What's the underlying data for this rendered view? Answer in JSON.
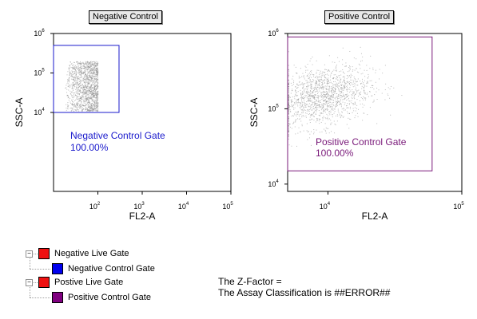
{
  "colors": {
    "negative_gate": "#1a1acc",
    "positive_gate": "#7a1a7a",
    "live_gate_swatch": "#ee1111",
    "negative_control_swatch": "#0000ee",
    "positive_control_swatch": "#800080",
    "points": "#888888"
  },
  "chart_data": [
    {
      "type": "scatter",
      "title": "Negative Control",
      "xlabel": "FL2-A",
      "ylabel": "SSC-A",
      "x_scale": "log",
      "y_scale": "log",
      "xlim": [
        10,
        100000
      ],
      "ylim": [
        100,
        1000000
      ],
      "x_ticks": [
        {
          "mantissa": "10",
          "exp": "2"
        },
        {
          "mantissa": "10",
          "exp": "3"
        },
        {
          "mantissa": "10",
          "exp": "4"
        },
        {
          "mantissa": "10",
          "exp": "5"
        }
      ],
      "y_ticks": [
        {
          "mantissa": "10",
          "exp": "4"
        },
        {
          "mantissa": "10",
          "exp": "5"
        },
        {
          "mantissa": "10",
          "exp": "6"
        }
      ],
      "point_cloud": {
        "x_range": [
          18,
          100
        ],
        "y_range": [
          11000,
          200000
        ],
        "count": 1500
      },
      "gate": {
        "name": "Negative Control Gate",
        "percent": "100.00%",
        "x_range": [
          10,
          300
        ],
        "y_range": [
          10000,
          500000
        ]
      }
    },
    {
      "type": "scatter",
      "title": "Positive Control",
      "xlabel": "FL2-A",
      "ylabel": "SSC-A",
      "x_scale": "log",
      "y_scale": "log",
      "xlim": [
        5000,
        100000
      ],
      "ylim": [
        8000,
        1000000
      ],
      "x_ticks": [
        {
          "mantissa": "10",
          "exp": "4"
        },
        {
          "mantissa": "10",
          "exp": "5"
        }
      ],
      "y_ticks": [
        {
          "mantissa": "10",
          "exp": "4"
        },
        {
          "mantissa": "10",
          "exp": "5"
        },
        {
          "mantissa": "10",
          "exp": "6"
        }
      ],
      "point_cloud": {
        "x_center": 9000,
        "y_center": 150000,
        "count": 1500
      },
      "gate": {
        "name": "Positive Control Gate",
        "percent": "100.00%",
        "x_range": [
          5000,
          60000
        ],
        "y_range": [
          15000,
          900000
        ]
      }
    }
  ],
  "tree": {
    "items": [
      {
        "label": "Negative Live Gate",
        "color": "#ee1111"
      },
      {
        "label": "Negative Control Gate",
        "color": "#0000ee"
      },
      {
        "label": "Postive Live Gate",
        "color": "#ee1111"
      },
      {
        "label": "Positive Control Gate",
        "color": "#800080"
      }
    ]
  },
  "results": {
    "z_factor": "The Z-Factor =",
    "classification": "The Assay Classification is ##ERROR##"
  }
}
